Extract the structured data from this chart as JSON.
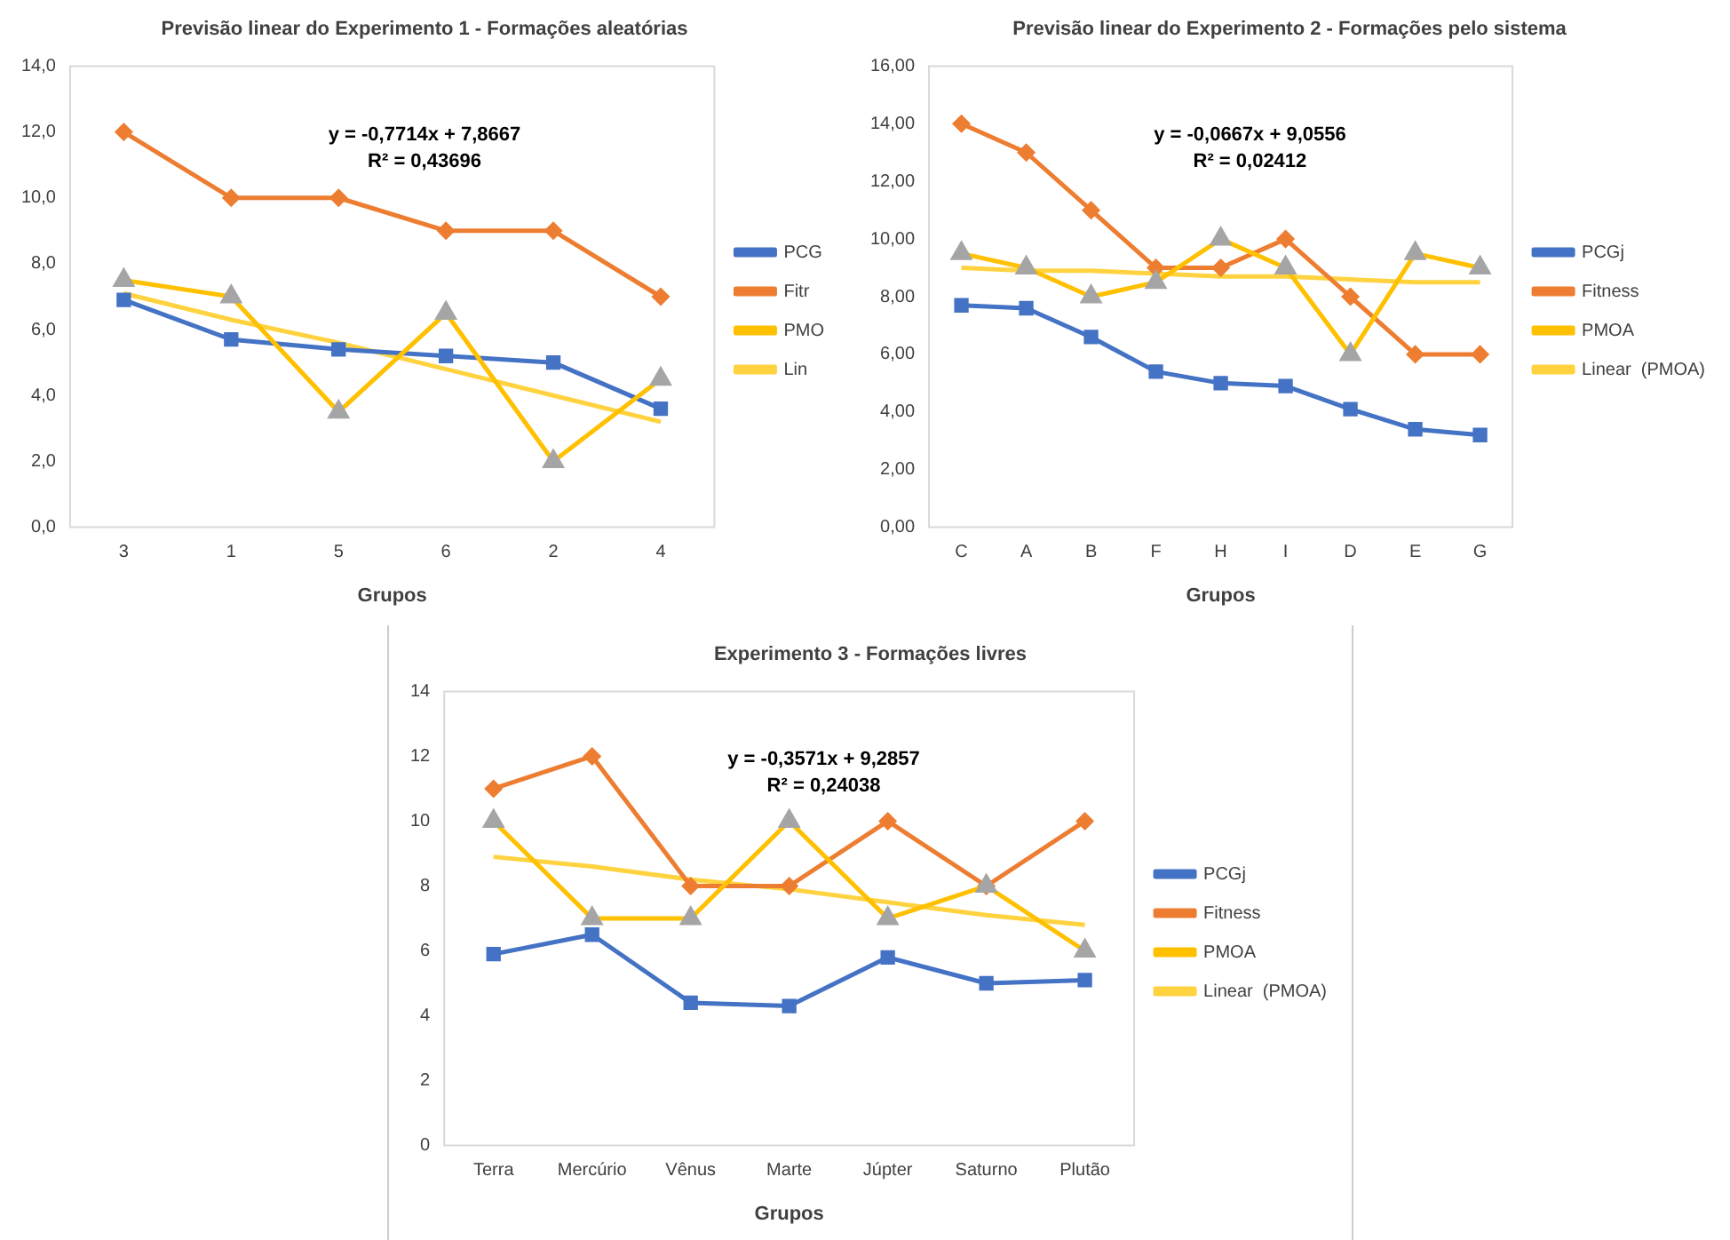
{
  "chart_data": [
    {
      "type": "line",
      "title": "Previsão linear do Experimento 1 - Formações aleatórias",
      "xlabel": "Grupos",
      "categories": [
        "3",
        "1",
        "5",
        "6",
        "2",
        "4"
      ],
      "series": [
        {
          "name": "PCG",
          "color": "#4472c4",
          "marker": "square",
          "values": [
            6.9,
            5.7,
            5.4,
            5.2,
            5.0,
            3.6
          ]
        },
        {
          "name": "Fitr",
          "color": "#ed7d31",
          "marker": "diamond",
          "values": [
            12,
            10,
            10,
            9,
            9,
            7
          ]
        },
        {
          "name": "PMO",
          "color": "#ffc000",
          "marker": "triangle",
          "values": [
            7.5,
            7.0,
            3.5,
            6.5,
            2.0,
            4.5
          ]
        },
        {
          "name": "Lin",
          "color": "#ffd23f",
          "marker": "none",
          "values": [
            7.1,
            6.3,
            5.6,
            4.8,
            4.0,
            3.2
          ]
        }
      ],
      "ylim": [
        0,
        14
      ],
      "yticks": [
        {
          "value": 0,
          "label": "0,0"
        },
        {
          "value": 2,
          "label": "2,0"
        },
        {
          "value": 4,
          "label": "4,0"
        },
        {
          "value": 6,
          "label": "6,0"
        },
        {
          "value": 8,
          "label": "8,0"
        },
        {
          "value": 10,
          "label": "10,0"
        },
        {
          "value": 12,
          "label": "12,0"
        },
        {
          "value": 14,
          "label": "14,0"
        }
      ],
      "annotations": [
        "y = -0,7714x + 7,8667",
        "R² = 0,43696"
      ],
      "grid": false,
      "legend": "right"
    },
    {
      "type": "line",
      "title": "Previsão linear do Experimento 2 - Formações pelo sistema",
      "xlabel": "Grupos",
      "categories": [
        "C",
        "A",
        "B",
        "F",
        "H",
        "I",
        "D",
        "E",
        "G"
      ],
      "series": [
        {
          "name": "PCGj",
          "color": "#4472c4",
          "marker": "square",
          "values": [
            7.7,
            7.6,
            6.6,
            5.4,
            5.0,
            4.9,
            4.1,
            3.4,
            3.2
          ]
        },
        {
          "name": "Fitness",
          "color": "#ed7d31",
          "marker": "diamond",
          "values": [
            14,
            13,
            11,
            9,
            9,
            10,
            8,
            6,
            6
          ]
        },
        {
          "name": "PMOA",
          "color": "#ffc000",
          "marker": "triangle",
          "values": [
            9.5,
            9,
            8,
            8.5,
            10,
            9,
            6,
            9.5,
            9
          ]
        },
        {
          "name": "Linear  (PMOA)",
          "color": "#ffd23f",
          "marker": "none",
          "values": [
            9.0,
            8.9,
            8.9,
            8.8,
            8.7,
            8.7,
            8.6,
            8.5,
            8.5
          ]
        }
      ],
      "ylim": [
        0,
        16
      ],
      "yticks": [
        {
          "value": 0,
          "label": "0,00"
        },
        {
          "value": 2,
          "label": "2,00"
        },
        {
          "value": 4,
          "label": "4,00"
        },
        {
          "value": 6,
          "label": "6,00"
        },
        {
          "value": 8,
          "label": "8,00"
        },
        {
          "value": 10,
          "label": "10,00"
        },
        {
          "value": 12,
          "label": "12,00"
        },
        {
          "value": 14,
          "label": "14,00"
        },
        {
          "value": 16,
          "label": "16,00"
        }
      ],
      "annotations": [
        "y = -0,0667x + 9,0556",
        "R² = 0,02412"
      ],
      "grid": false,
      "legend": "right"
    },
    {
      "type": "line",
      "title": "Experimento 3 - Formações livres",
      "xlabel": "Grupos",
      "categories": [
        "Terra",
        "Mercúrio",
        "Vênus",
        "Marte",
        "Júpter",
        "Saturno",
        "Plutão"
      ],
      "series": [
        {
          "name": "PCGj",
          "color": "#4472c4",
          "marker": "square",
          "values": [
            5.9,
            6.5,
            4.4,
            4.3,
            5.8,
            5.0,
            5.1
          ]
        },
        {
          "name": "Fitness",
          "color": "#ed7d31",
          "marker": "diamond",
          "values": [
            11,
            12,
            8,
            8,
            10,
            8,
            10
          ]
        },
        {
          "name": "PMOA",
          "color": "#ffc000",
          "marker": "triangle",
          "values": [
            10,
            7,
            7,
            10,
            7,
            8,
            6
          ]
        },
        {
          "name": "Linear  (PMOA)",
          "color": "#ffd23f",
          "marker": "none",
          "values": [
            8.9,
            8.6,
            8.2,
            7.9,
            7.5,
            7.1,
            6.8
          ]
        }
      ],
      "ylim": [
        0,
        14
      ],
      "yticks": [
        0,
        2,
        4,
        6,
        8,
        10,
        12,
        14
      ],
      "annotations": [
        "y = -0,3571x + 9,2857",
        "R² = 0,24038"
      ],
      "grid": false,
      "legend": "right"
    }
  ]
}
